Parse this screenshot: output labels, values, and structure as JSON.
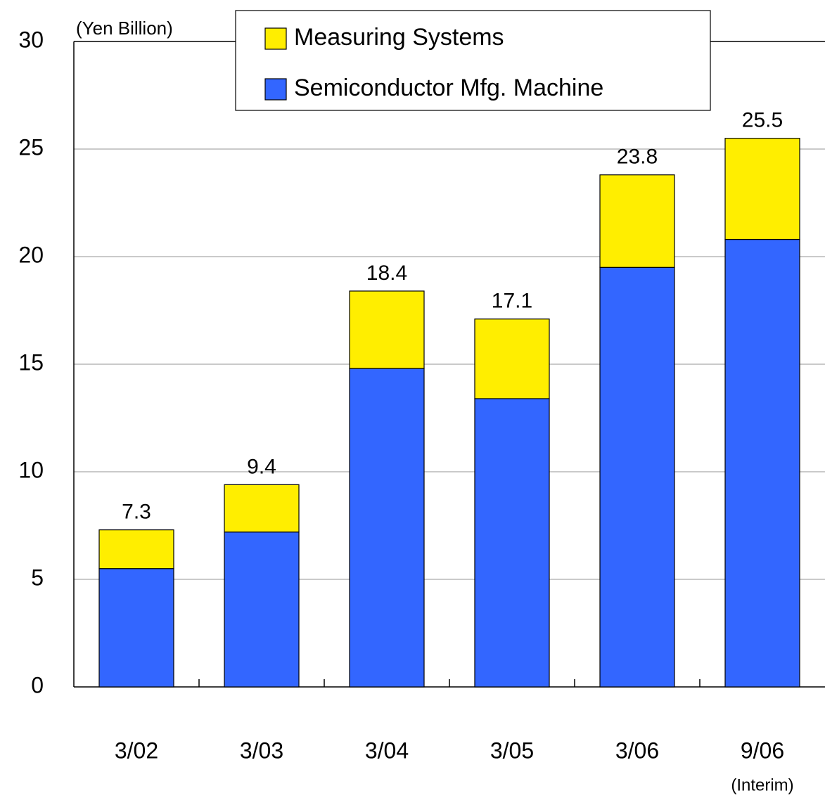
{
  "chart_data": {
    "type": "stacked_bar",
    "y_label": "(Yen Billion)",
    "categories": [
      "3/02",
      "3/03",
      "3/04",
      "3/05",
      "3/06",
      "9/06"
    ],
    "category_note": "(Interim)",
    "series": [
      {
        "name": "Semiconductor Mfg. Machine",
        "color": "#3366ff",
        "values": [
          5.5,
          7.2,
          14.8,
          13.4,
          19.5,
          20.8
        ]
      },
      {
        "name": "Measuring Systems",
        "color": "#ffee00",
        "values": [
          1.8,
          2.2,
          3.6,
          3.7,
          4.3,
          4.7
        ]
      }
    ],
    "totals": [
      7.3,
      9.4,
      18.4,
      17.1,
      23.8,
      25.5
    ],
    "ylim": [
      0,
      30
    ],
    "yticks": [
      0,
      5,
      10,
      15,
      20,
      25,
      30
    ],
    "grid": true
  }
}
